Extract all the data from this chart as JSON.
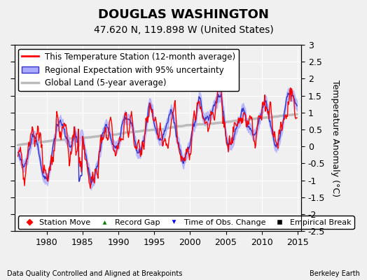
{
  "title": "DOUGLAS WASHINGTON",
  "subtitle": "47.620 N, 119.898 W (United States)",
  "xlabel_bottom": "Data Quality Controlled and Aligned at Breakpoints",
  "xlabel_right": "Berkeley Earth",
  "ylabel": "Temperature Anomaly (°C)",
  "xlim": [
    1975.5,
    2015.5
  ],
  "ylim": [
    -2.5,
    3.0
  ],
  "yticks": [
    -2.5,
    -2,
    -1.5,
    -1,
    -0.5,
    0,
    0.5,
    1,
    1.5,
    2,
    2.5,
    3
  ],
  "xticks": [
    1980,
    1985,
    1990,
    1995,
    2000,
    2005,
    2010,
    2015
  ],
  "background_color": "#f0f0f0",
  "grid_color": "#ffffff",
  "station_color": "#ff0000",
  "regional_color": "#3333cc",
  "regional_fill_color": "#aaaaff",
  "global_color": "#bbbbbb",
  "title_fontsize": 13,
  "subtitle_fontsize": 10,
  "legend_fontsize": 8.5,
  "tick_fontsize": 9,
  "seed": 100
}
